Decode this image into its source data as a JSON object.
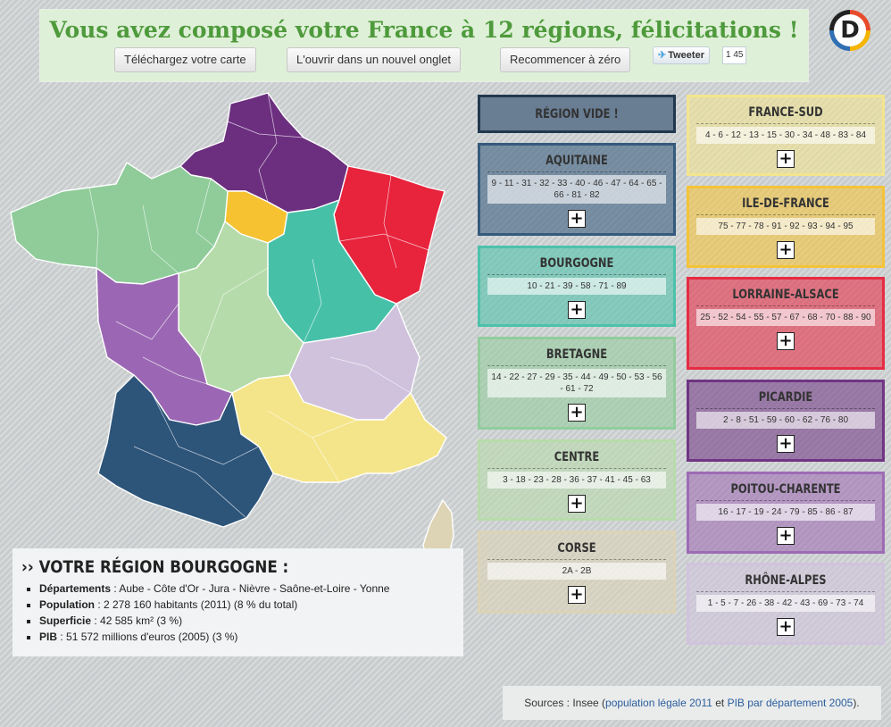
{
  "header": {
    "title": "Vous avez composé votre France à 12 régions, félicitations !",
    "buttons": {
      "download": "Téléchargez votre carte",
      "open_tab": "L'ouvrir dans un nouvel onglet",
      "reset": "Recommencer à zéro"
    },
    "tweet_label": "Tweeter",
    "tweet_count": "1 45",
    "logo_letter": "D"
  },
  "regions": [
    {
      "name": "RÉGION VIDE !",
      "departements": "",
      "color": "#697d93"
    },
    {
      "name": "AQUITAINE",
      "departements": "9 - 11 - 31 - 32 - 33 - 40 - 46 - 47 - 64 - 65 - 66 - 81 - 82",
      "color": "#2d5479"
    },
    {
      "name": "BOURGOGNE",
      "departements": "10 - 21 - 39 - 58 - 71 - 89",
      "color": "#46c1a8"
    },
    {
      "name": "BRETAGNE",
      "departements": "14 - 22 - 27 - 29 - 35 - 44 - 49 - 50 - 53 - 56 - 61 - 72",
      "color": "#8fcc9a"
    },
    {
      "name": "CENTRE",
      "departements": "3 - 18 - 23 - 28 - 36 - 37 - 41 - 45 - 63",
      "color": "#b6dbaa"
    },
    {
      "name": "CORSE",
      "departements": "2A - 2B",
      "color": "#ddd3b5"
    },
    {
      "name": "FRANCE-SUD",
      "departements": "4 - 6 - 12 - 13 - 15 - 30 - 34 - 48 - 83 - 84",
      "color": "#f4e58a"
    },
    {
      "name": "ILE-DE-FRANCE",
      "departements": "75 - 77 - 78 - 91 - 92 - 93 - 94 - 95",
      "color": "#f6c231"
    },
    {
      "name": "LORRAINE-ALSACE",
      "departements": "25 - 52 - 54 - 55 - 57 - 67 - 68 - 70 - 88 - 90",
      "color": "#e8233c"
    },
    {
      "name": "PICARDIE",
      "departements": "2 - 8 - 51 - 59 - 60 - 62 - 76 - 80",
      "color": "#6c2f7f"
    },
    {
      "name": "POITOU-CHARENTE",
      "departements": "16 - 17 - 19 - 24 - 79 - 85 - 86 - 87",
      "color": "#9b66b3"
    },
    {
      "name": "RHÔNE-ALPES",
      "departements": "1 - 5 - 7 - 26 - 38 - 42 - 43 - 69 - 73 - 74",
      "color": "#d0c2dd"
    }
  ],
  "info": {
    "title": "›› VOTRE RÉGION BOURGOGNE :",
    "items": [
      {
        "label": "Départements",
        "value": " : Aube - Côte d'Or - Jura - Nièvre - Saône-et-Loire - Yonne"
      },
      {
        "label": "Population",
        "value": " : 2 278 160 habitants (2011) (8 % du total)"
      },
      {
        "label": "Superficie",
        "value": " : 42 585 km² (3 %)"
      },
      {
        "label": "PIB",
        "value": " : 51 572 millions d'euros (2005) (3 %)"
      }
    ]
  },
  "sources": {
    "prefix": "Sources : Insee (",
    "link1": "population légale 2011",
    "middle": " et ",
    "link2": "PIB par département 2005",
    "suffix": ")."
  }
}
